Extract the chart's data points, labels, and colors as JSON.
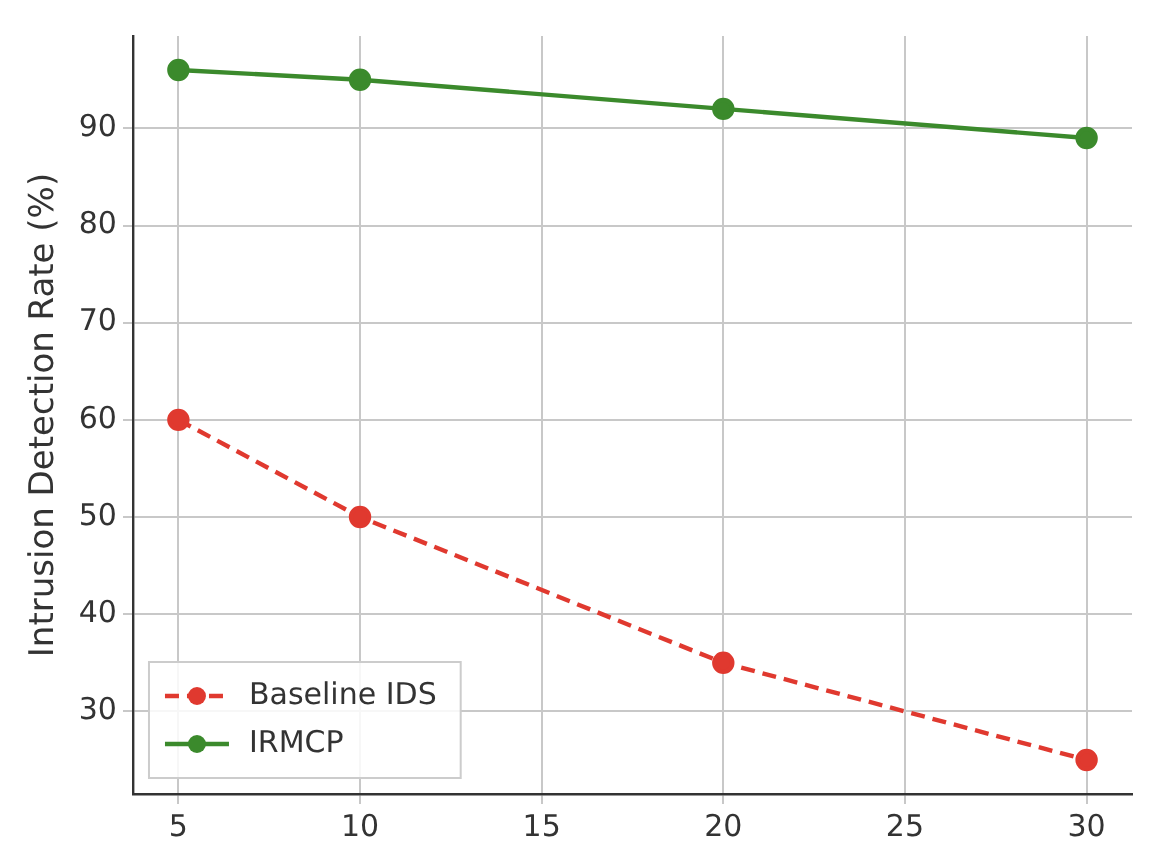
{
  "chart_data": {
    "type": "line",
    "ylabel": "Intrusion Detection Rate (%)",
    "x": [
      5,
      10,
      20,
      30
    ],
    "series": [
      {
        "name": "Baseline IDS",
        "color": "#e0392f",
        "values": [
          60,
          50,
          35,
          25
        ],
        "line_style": "dashed"
      },
      {
        "name": "IRMCP",
        "color": "#3b8a2c",
        "values": [
          96,
          95,
          92,
          89
        ],
        "line_style": "solid"
      }
    ],
    "xlim": [
      3.75,
      31.25
    ],
    "xticks": [
      5,
      10,
      15,
      20,
      25,
      30
    ],
    "ylim": [
      21.5,
      99.5
    ],
    "yticks": [
      30,
      40,
      50,
      60,
      70,
      80,
      90
    ],
    "grid": true,
    "legend": "bottom left",
    "marker": "circle"
  }
}
